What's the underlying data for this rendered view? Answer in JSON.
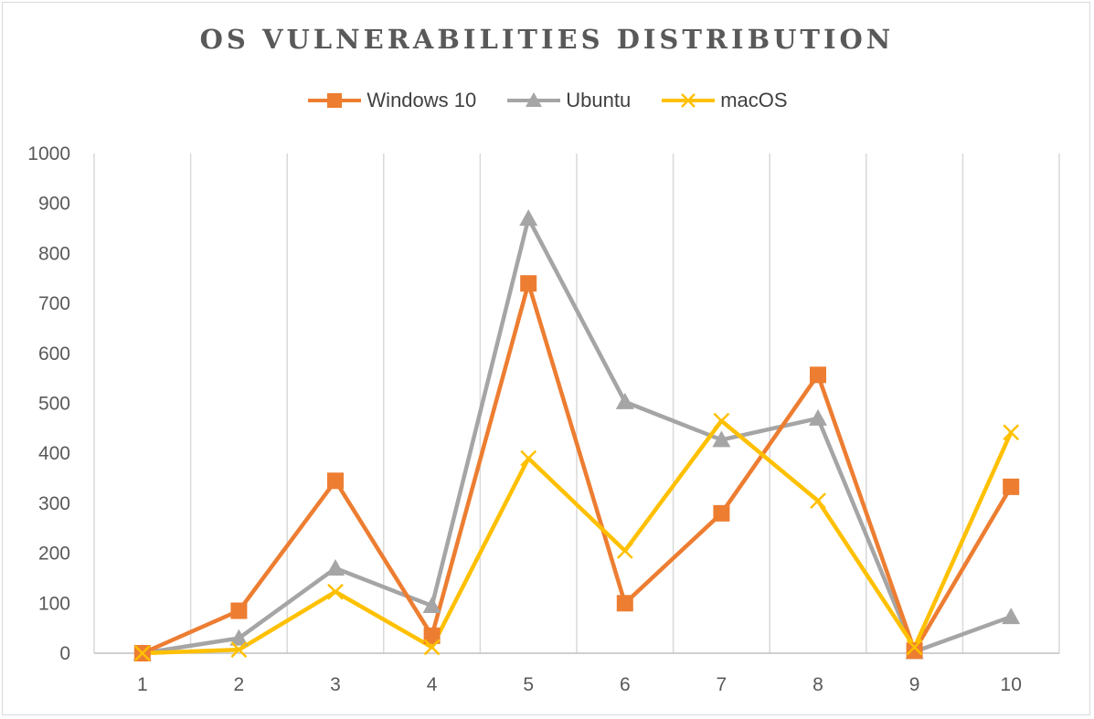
{
  "chart_data": {
    "type": "line",
    "title": "OS VULNERABILITIES DISTRIBUTION",
    "xlabel": "",
    "ylabel": "",
    "x": [
      "1",
      "2",
      "3",
      "4",
      "5",
      "6",
      "7",
      "8",
      "9",
      "10"
    ],
    "ylim": [
      0,
      1000
    ],
    "yticks": [
      "0",
      "100",
      "200",
      "300",
      "400",
      "500",
      "600",
      "700",
      "800",
      "900",
      "1000"
    ],
    "grid": "vertical",
    "legend": "top",
    "series": [
      {
        "name": "Windows 10",
        "color": "#ED7D31",
        "marker": "square",
        "values": [
          0,
          85,
          345,
          35,
          740,
          100,
          280,
          557,
          5,
          333
        ]
      },
      {
        "name": "Ubuntu",
        "color": "#A5A5A5",
        "marker": "triangle",
        "values": [
          0,
          30,
          170,
          95,
          870,
          503,
          427,
          470,
          3,
          73
        ]
      },
      {
        "name": "macOS",
        "color": "#FFC000",
        "marker": "x",
        "values": [
          0,
          7,
          123,
          12,
          390,
          205,
          465,
          305,
          12,
          442
        ]
      }
    ]
  }
}
